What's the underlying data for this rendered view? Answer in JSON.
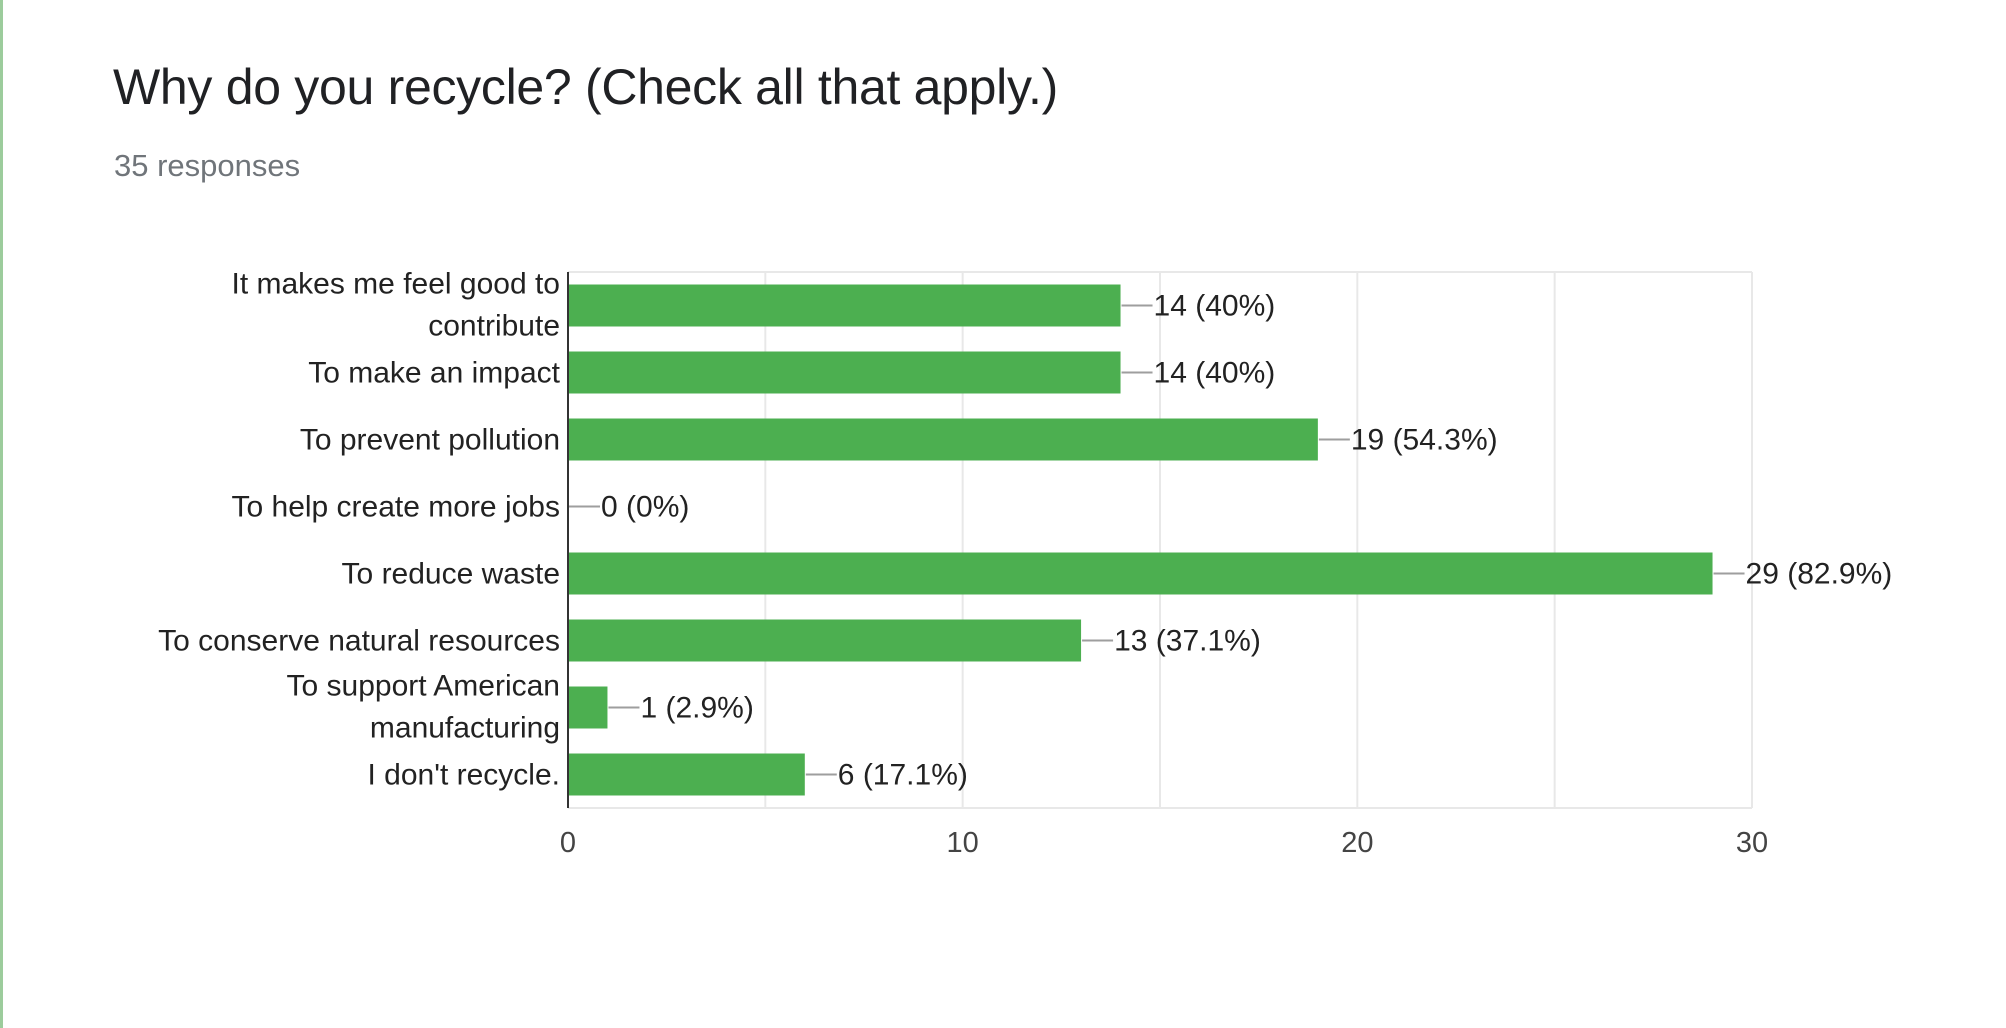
{
  "question": {
    "title": "Why do you recycle? (Check all that apply.)",
    "responses": "35 responses"
  },
  "colors": {
    "bar": "#4caf50",
    "accent": "#9ccc9c",
    "grid": "#e8e8e8",
    "axis": "#333333",
    "leader": "#9e9e9e",
    "text": "#222222",
    "tick_text": "#444444"
  },
  "chart_data": {
    "type": "bar",
    "orientation": "horizontal",
    "categories": [
      "It makes me feel good to contribute",
      "To make an impact",
      "To prevent pollution",
      "To help create more jobs",
      "To reduce waste",
      "To conserve natural resources",
      "To support American manufacturing",
      "I don't recycle."
    ],
    "values": [
      14,
      14,
      19,
      0,
      29,
      13,
      1,
      6
    ],
    "data_labels": [
      "14 (40%)",
      "14 (40%)",
      "19 (54.3%)",
      "0 (0%)",
      "29 (82.9%)",
      "13 (37.1%)",
      "1 (2.9%)",
      "6 (17.1%)"
    ],
    "xlim": [
      0,
      30
    ],
    "xticks": [
      0,
      10,
      20,
      30
    ],
    "xticklabels": [
      "0",
      "10",
      "20",
      "30"
    ],
    "grid": true,
    "legend": "none"
  }
}
